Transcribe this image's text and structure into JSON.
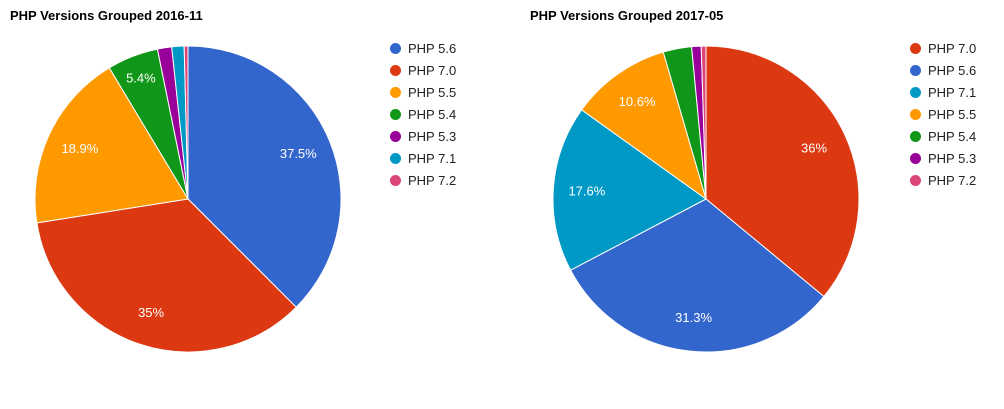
{
  "chart_data": [
    {
      "type": "pie",
      "title": "PHP Versions Grouped 2016-11",
      "legend_position": "right",
      "labels": [
        "PHP 5.6",
        "PHP 7.0",
        "PHP 5.5",
        "PHP 5.4",
        "PHP 5.3",
        "PHP 7.1",
        "PHP 7.2"
      ],
      "values": [
        37.5,
        35,
        18.9,
        5.4,
        1.5,
        1.3,
        0.4
      ],
      "slice_labels": [
        "37.5%",
        "35%",
        "18.9%",
        "5.4%",
        "",
        "",
        ""
      ],
      "colors": [
        "#3366CC",
        "#DC3912",
        "#FF9900",
        "#109618",
        "#990099",
        "#0099C6",
        "#DD4477"
      ],
      "slice_label_color": "#ffffff",
      "title_color": "#000000",
      "legend_text_color": "#222222"
    },
    {
      "type": "pie",
      "title": "PHP Versions Grouped 2017-05",
      "legend_position": "right",
      "labels": [
        "PHP 7.0",
        "PHP 5.6",
        "PHP 7.1",
        "PHP 5.5",
        "PHP 5.4",
        "PHP 5.3",
        "PHP 7.2"
      ],
      "values": [
        36,
        31.3,
        17.6,
        10.6,
        3.0,
        1.0,
        0.5
      ],
      "slice_labels": [
        "36%",
        "31.3%",
        "17.6%",
        "10.6%",
        "",
        "",
        ""
      ],
      "colors": [
        "#DC3912",
        "#3366CC",
        "#0099C6",
        "#FF9900",
        "#109618",
        "#990099",
        "#DD4477"
      ],
      "slice_label_color": "#ffffff",
      "title_color": "#000000",
      "legend_text_color": "#222222"
    }
  ]
}
